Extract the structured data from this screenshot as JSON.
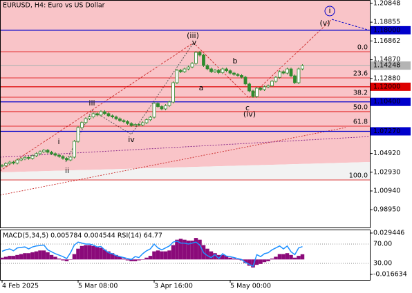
{
  "chart_data": [
    {
      "type": "candlestick",
      "title": "EURUSD, H4:  Euro vs US Dollar",
      "up_color": "#ffffff",
      "down_color": "#2e8b2e",
      "outline_color": "#2e8b2e",
      "closes": [
        1.0365,
        1.0385,
        1.04,
        1.039,
        1.0423,
        1.0435,
        1.045,
        1.044,
        1.0467,
        1.049,
        1.051,
        1.0526,
        1.0505,
        1.049,
        1.0474,
        1.046,
        1.044,
        1.0423,
        1.0453,
        1.0621,
        1.0767,
        1.082,
        1.0862,
        1.088,
        1.0914,
        1.09,
        1.0936,
        1.0915,
        1.0892,
        1.088,
        1.086,
        1.0841,
        1.083,
        1.081,
        1.0789,
        1.08,
        1.0795,
        1.0818,
        1.085,
        1.0877,
        1.1024,
        1.099,
        1.0965,
        1.1,
        1.1038,
        1.1243,
        1.1375,
        1.136,
        1.1389,
        1.141,
        1.1448,
        1.1565,
        1.1536,
        1.1426,
        1.139,
        1.136,
        1.1375,
        1.135,
        1.1389,
        1.137,
        1.1345,
        1.1331,
        1.132,
        1.1302,
        1.123,
        1.1155,
        1.1097,
        1.1185,
        1.117,
        1.1199,
        1.121,
        1.1258,
        1.13,
        1.136,
        1.1345,
        1.1389,
        1.1316,
        1.1243,
        1.1389,
        1.14248
      ],
      "ylim": [
        0.9706,
        1.2121
      ],
      "yticks": [
        1.20848,
        1.18855,
        1.16862,
        {
          "value": 1.1487,
          "label": "1.14870"
        },
        {
          "value": 1.1288,
          "label": "1.12880"
        },
        {
          "value": 1.0492,
          "label": "1.04920"
        },
        {
          "value": 1.0293,
          "label": "1.02930"
        },
        {
          "value": 1.0094,
          "label": "1.00940"
        },
        {
          "value": 0.9895,
          "label": "0.98950"
        }
      ],
      "xticks": [
        {
          "value": 0,
          "label": "4 Feb 2025"
        },
        {
          "value": 20,
          "label": "5 Mar 08:00"
        },
        {
          "value": 40,
          "label": "3 Apr 16:00"
        },
        {
          "value": 60,
          "label": "5 May 00:00"
        }
      ],
      "levels": [
        {
          "value": 1.18,
          "label": "1.18000",
          "color": "#0000cc"
        },
        {
          "value": 1.14248,
          "label": "1.14248",
          "color": "#b4b4b4"
        },
        {
          "value": 1.12,
          "label": "1.12000",
          "color": "#dd0000"
        },
        {
          "value": 1.104,
          "label": "1.10400",
          "color": "#0000cc"
        },
        {
          "value": 1.0727,
          "label": "1.07270",
          "color": "#0000cc"
        }
      ],
      "fib_levels": [
        {
          "value": 1.1572,
          "label": "0.0"
        },
        {
          "value": 1.1294,
          "label": "23.6"
        },
        {
          "value": 1.1089,
          "label": "38.2"
        },
        {
          "value": 1.0936,
          "label": "50.0"
        },
        {
          "value": 1.0782,
          "label": "61.8"
        },
        {
          "value": 1.0211,
          "label": "100.0"
        }
      ],
      "fib_color": "#dd0000",
      "wave_labels": [
        "i",
        "ii",
        "iii",
        "iv",
        "v",
        "(iii)",
        "a",
        "b",
        "c",
        "(iv)",
        "(v)",
        "i"
      ]
    },
    {
      "type": "macd_rsi",
      "title": "MACD(5,34,5) 0.005784 0.004544 RSI(14) 64.77",
      "macd": [
        0.002,
        0.003,
        0.004,
        0.004,
        0.005,
        0.006,
        0.007,
        0.007,
        0.008,
        0.009,
        0.01,
        0.01,
        0.008,
        0.005,
        0.003,
        0.001,
        -0.001,
        -0.002,
        0.0,
        0.006,
        0.012,
        0.015,
        0.016,
        0.016,
        0.015,
        0.014,
        0.013,
        0.011,
        0.009,
        0.007,
        0.005,
        0.003,
        0.001,
        -0.001,
        -0.002,
        -0.002,
        -0.001,
        0.0,
        0.002,
        0.004,
        0.009,
        0.01,
        0.009,
        0.009,
        0.01,
        0.016,
        0.022,
        0.023,
        0.022,
        0.021,
        0.021,
        0.024,
        0.022,
        0.016,
        0.012,
        0.009,
        0.007,
        0.005,
        0.005,
        0.004,
        0.002,
        0.001,
        0.0,
        -0.001,
        -0.004,
        -0.007,
        -0.009,
        -0.006,
        -0.005,
        -0.003,
        -0.002,
        0.001,
        0.003,
        0.006,
        0.006,
        0.007,
        0.005,
        0.002,
        0.004,
        0.005784
      ],
      "rsi": [
        55,
        58,
        60,
        56,
        62,
        63,
        64,
        60,
        64,
        66,
        67,
        68,
        58,
        54,
        50,
        47,
        44,
        40,
        52,
        68,
        74,
        72,
        70,
        70,
        68,
        64,
        65,
        58,
        52,
        50,
        46,
        44,
        42,
        40,
        38,
        44,
        42,
        50,
        56,
        60,
        70,
        62,
        58,
        62,
        66,
        74,
        76,
        72,
        72,
        70,
        72,
        74,
        68,
        52,
        46,
        42,
        48,
        40,
        50,
        45,
        44,
        42,
        40,
        38,
        32,
        28,
        24,
        48,
        44,
        50,
        52,
        58,
        62,
        66,
        60,
        66,
        54,
        48,
        62,
        64.77
      ],
      "macd_color": "#8b0a7a",
      "rsi_color": "#1e90ff",
      "ylim": [
        -0.0228,
        0.0333
      ],
      "yticks": [
        0.029446,
        -0.016634
      ],
      "y2lim": [
        -4.3,
        100
      ],
      "y2ticks": [
        {
          "value": 70,
          "label": "70.00"
        },
        {
          "value": 30,
          "label": "30.00"
        }
      ]
    }
  ]
}
